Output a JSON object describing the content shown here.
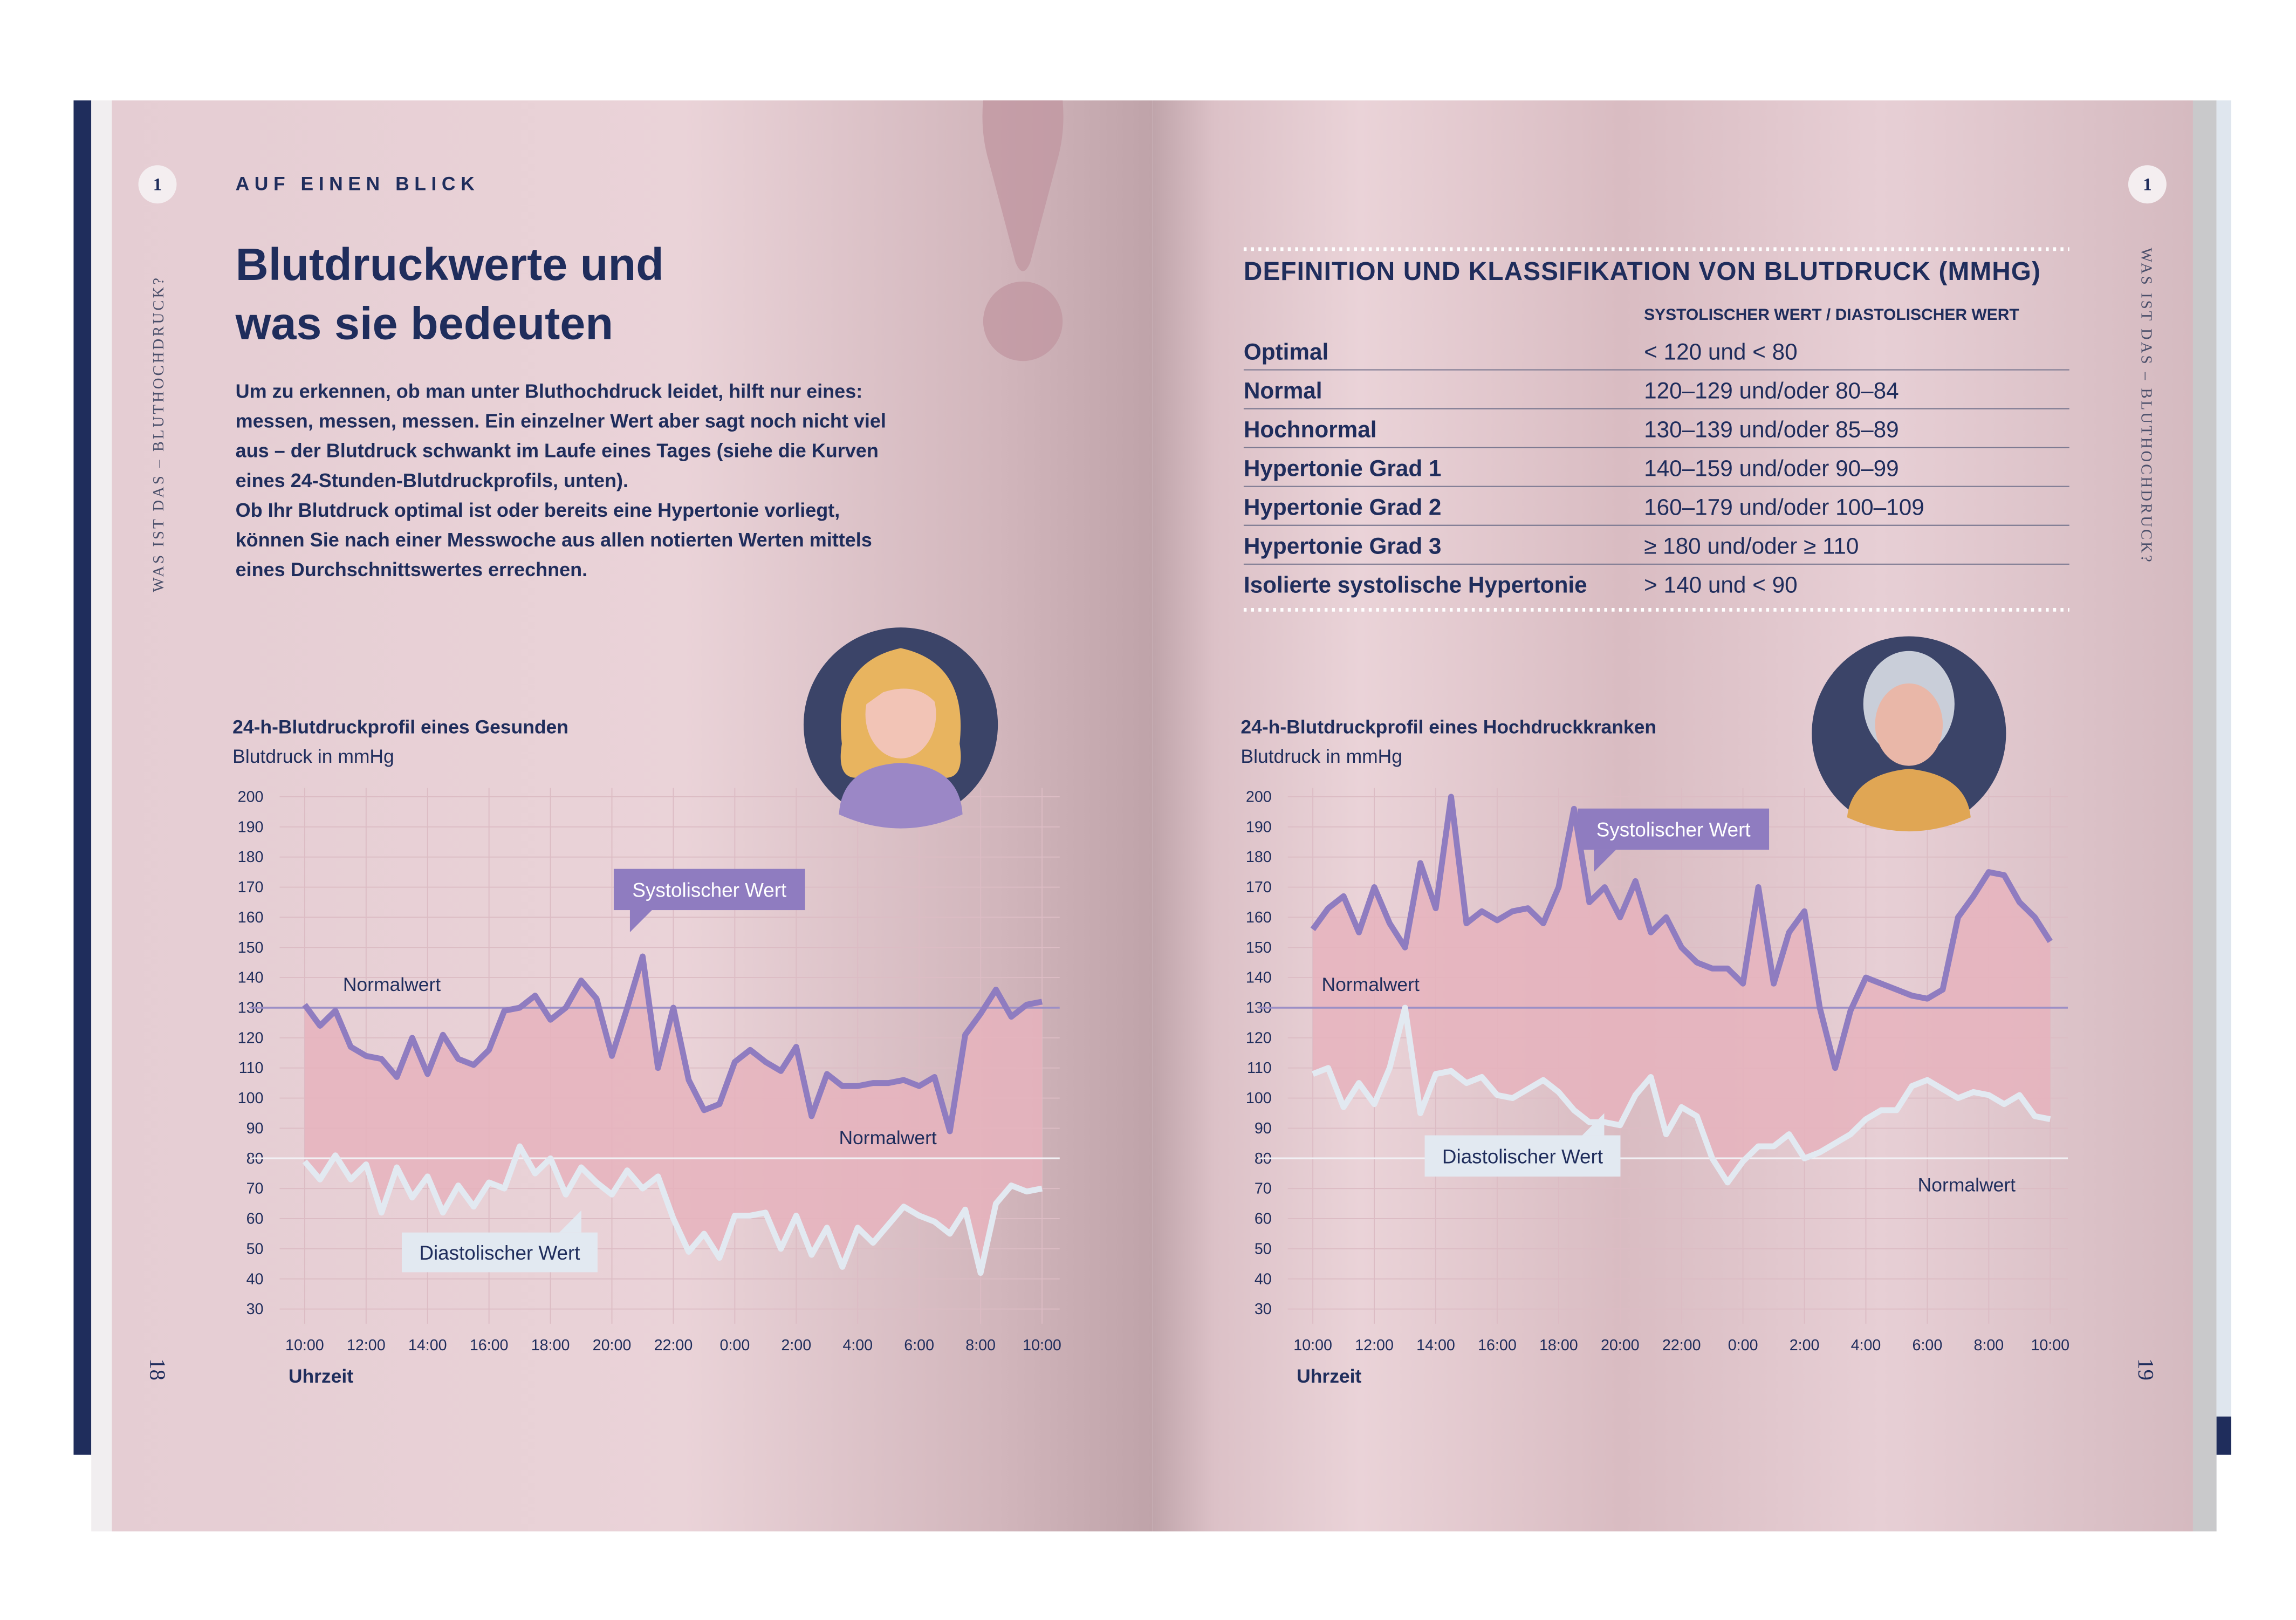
{
  "left_page": {
    "chapter_number": "1",
    "section": "AUF EINEN BLICK",
    "title_lines": [
      "Blutdruckwerte und",
      "was sie bedeuten"
    ],
    "body_lines": [
      "Um zu erkennen, ob man unter Bluthochdruck leidet, hilft nur eines:",
      "messen, messen, messen. Ein einzelner Wert aber sagt noch nicht viel",
      "aus – der Blutdruck schwankt im Laufe eines Tages (siehe die Kurven",
      "eines 24-Stunden-Blutdruckprofils, unten).",
      "Ob Ihr Blutdruck optimal ist oder bereits eine Hypertonie vorliegt,",
      "können Sie nach einer Messwoche aus allen notierten Werten mittels",
      "eines Durchschnittswertes errechnen."
    ],
    "side_text": "WAS IST DAS – BLUTHOCHDRUCK?",
    "page_number": "18"
  },
  "right_page": {
    "chapter_number": "1",
    "side_text": "WAS IST DAS – BLUTHOCHDRUCK?",
    "page_number": "19",
    "table": {
      "title": "DEFINITION UND KLASSIFIKATION VON BLUTDRUCK (MMHG)",
      "column_header": "SYSTOLISCHER WERT / DIASTOLISCHER WERT",
      "rows": [
        [
          "Optimal",
          "< 120 und < 80"
        ],
        [
          "Normal",
          "120–129 und/oder 80–84"
        ],
        [
          "Hochnormal",
          "130–139 und/oder 85–89"
        ],
        [
          "Hypertonie Grad 1",
          "140–159 und/oder 90–99"
        ],
        [
          "Hypertonie Grad 2",
          "160–179 und/oder 100–109"
        ],
        [
          "Hypertonie Grad 3",
          "≥ 180 und/oder ≥ 110"
        ],
        [
          "Isolierte systolische Hypertonie",
          "> 140 und < 90"
        ]
      ]
    }
  },
  "chart_data": [
    {
      "type": "line",
      "title": "24-h-Blutdruckprofil eines Gesunden",
      "subtitle": "Blutdruck in mmHg",
      "x_label": "Uhrzeit",
      "x": [
        0,
        0.5,
        1,
        1.5,
        2,
        2.5,
        3,
        3.5,
        4,
        4.5,
        5,
        5.5,
        6,
        6.5,
        7,
        7.5,
        8,
        8.5,
        9,
        9.5,
        10,
        10.5,
        11,
        11.5,
        12,
        12.5,
        13,
        13.5,
        14,
        14.5,
        15,
        15.5,
        16,
        16.5,
        17,
        17.5,
        18,
        18.5,
        19,
        19.5,
        20,
        20.5,
        21,
        21.5,
        22,
        22.5,
        23,
        23.5,
        24
      ],
      "series": [
        {
          "name": "Systolischer Wert",
          "color": "#8f7cc0",
          "values": [
            131,
            124,
            129,
            117,
            114,
            113,
            107,
            120,
            108,
            121,
            113,
            111,
            116,
            129,
            130,
            134,
            126,
            130,
            139,
            133,
            114,
            130,
            147,
            110,
            130,
            106,
            96,
            98,
            112,
            116,
            112,
            109,
            117,
            94,
            108,
            104,
            104,
            105,
            105,
            106,
            104,
            107,
            89,
            121,
            128,
            136,
            127,
            131,
            132
          ]
        },
        {
          "name": "Diastolischer Wert",
          "color": "#e2e9f1",
          "values": [
            79,
            73,
            81,
            73,
            78,
            62,
            77,
            67,
            74,
            62,
            71,
            64,
            72,
            70,
            84,
            75,
            80,
            68,
            77,
            72,
            68,
            76,
            70,
            74,
            60,
            49,
            55,
            47,
            61,
            61,
            62,
            50,
            61,
            48,
            57,
            44,
            57,
            52,
            58,
            64,
            61,
            59,
            55,
            63,
            42,
            65,
            71,
            69,
            70
          ]
        }
      ],
      "area_color": "#e6b3bd",
      "annotations": [
        "Systolischer Wert",
        "Diastolischer Wert"
      ],
      "reference_lines": [
        {
          "value": 130,
          "label": "Normalwert"
        },
        {
          "value": 80,
          "label": "Normalwert"
        }
      ],
      "xlim": [
        0,
        24
      ],
      "xticks": [
        {
          "value": 0,
          "label": "10:00"
        },
        {
          "value": 2,
          "label": "12:00"
        },
        {
          "value": 4,
          "label": "14:00"
        },
        {
          "value": 6,
          "label": "16:00"
        },
        {
          "value": 8,
          "label": "18:00"
        },
        {
          "value": 10,
          "label": "20:00"
        },
        {
          "value": 12,
          "label": "22:00"
        },
        {
          "value": 14,
          "label": "0:00"
        },
        {
          "value": 16,
          "label": "2:00"
        },
        {
          "value": 18,
          "label": "4:00"
        },
        {
          "value": 20,
          "label": "6:00"
        },
        {
          "value": 22,
          "label": "8:00"
        },
        {
          "value": 24,
          "label": "10:00"
        }
      ],
      "ylim": [
        30,
        200
      ],
      "yticks": [
        30,
        40,
        50,
        60,
        70,
        80,
        90,
        100,
        110,
        120,
        130,
        140,
        150,
        160,
        170,
        180,
        190,
        200
      ],
      "grid": true
    },
    {
      "type": "line",
      "title": "24-h-Blutdruckprofil eines Hochdruckkranken",
      "subtitle": "Blutdruck in mmHg",
      "x_label": "Uhrzeit",
      "x": [
        0,
        0.5,
        1,
        1.5,
        2,
        2.5,
        3,
        3.5,
        4,
        4.5,
        5,
        5.5,
        6,
        6.5,
        7,
        7.5,
        8,
        8.5,
        9,
        9.5,
        10,
        10.5,
        11,
        11.5,
        12,
        12.5,
        13,
        13.5,
        14,
        14.5,
        15,
        15.5,
        16,
        16.5,
        17,
        17.5,
        18,
        18.5,
        19,
        19.5,
        20,
        20.5,
        21,
        21.5,
        22,
        22.5,
        23,
        23.5,
        24
      ],
      "series": [
        {
          "name": "Systolischer Wert",
          "color": "#8f7cc0",
          "values": [
            156,
            163,
            167,
            155,
            170,
            158,
            150,
            178,
            163,
            200,
            158,
            162,
            159,
            162,
            163,
            158,
            170,
            196,
            165,
            170,
            160,
            172,
            155,
            160,
            150,
            145,
            143,
            143,
            138,
            170,
            138,
            155,
            162,
            130,
            110,
            129,
            140,
            138,
            136,
            134,
            133,
            136,
            160,
            167,
            175,
            174,
            165,
            160,
            152
          ]
        },
        {
          "name": "Diastolischer Wert",
          "color": "#e2e9f1",
          "values": [
            108,
            110,
            97,
            105,
            98,
            110,
            130,
            95,
            108,
            109,
            105,
            107,
            101,
            100,
            103,
            106,
            102,
            96,
            92,
            92,
            91,
            101,
            107,
            88,
            97,
            94,
            80,
            72,
            79,
            84,
            84,
            88,
            80,
            82,
            85,
            88,
            93,
            96,
            96,
            104,
            106,
            103,
            100,
            102,
            101,
            98,
            101,
            94,
            93
          ]
        }
      ],
      "area_color": "#e6b3bd",
      "annotations": [
        "Systolischer Wert",
        "Diastolischer Wert"
      ],
      "reference_lines": [
        {
          "value": 130,
          "label": "Normalwert"
        },
        {
          "value": 80,
          "label": "Normalwert"
        }
      ],
      "xlim": [
        0,
        24
      ],
      "xticks": [
        {
          "value": 0,
          "label": "10:00"
        },
        {
          "value": 2,
          "label": "12:00"
        },
        {
          "value": 4,
          "label": "14:00"
        },
        {
          "value": 6,
          "label": "16:00"
        },
        {
          "value": 8,
          "label": "18:00"
        },
        {
          "value": 10,
          "label": "20:00"
        },
        {
          "value": 12,
          "label": "22:00"
        },
        {
          "value": 14,
          "label": "0:00"
        },
        {
          "value": 16,
          "label": "2:00"
        },
        {
          "value": 18,
          "label": "4:00"
        },
        {
          "value": 20,
          "label": "6:00"
        },
        {
          "value": 22,
          "label": "8:00"
        },
        {
          "value": 24,
          "label": "10:00"
        }
      ],
      "ylim": [
        30,
        200
      ],
      "yticks": [
        30,
        40,
        50,
        60,
        70,
        80,
        90,
        100,
        110,
        120,
        130,
        140,
        150,
        160,
        170,
        180,
        190,
        200
      ],
      "grid": true
    }
  ]
}
